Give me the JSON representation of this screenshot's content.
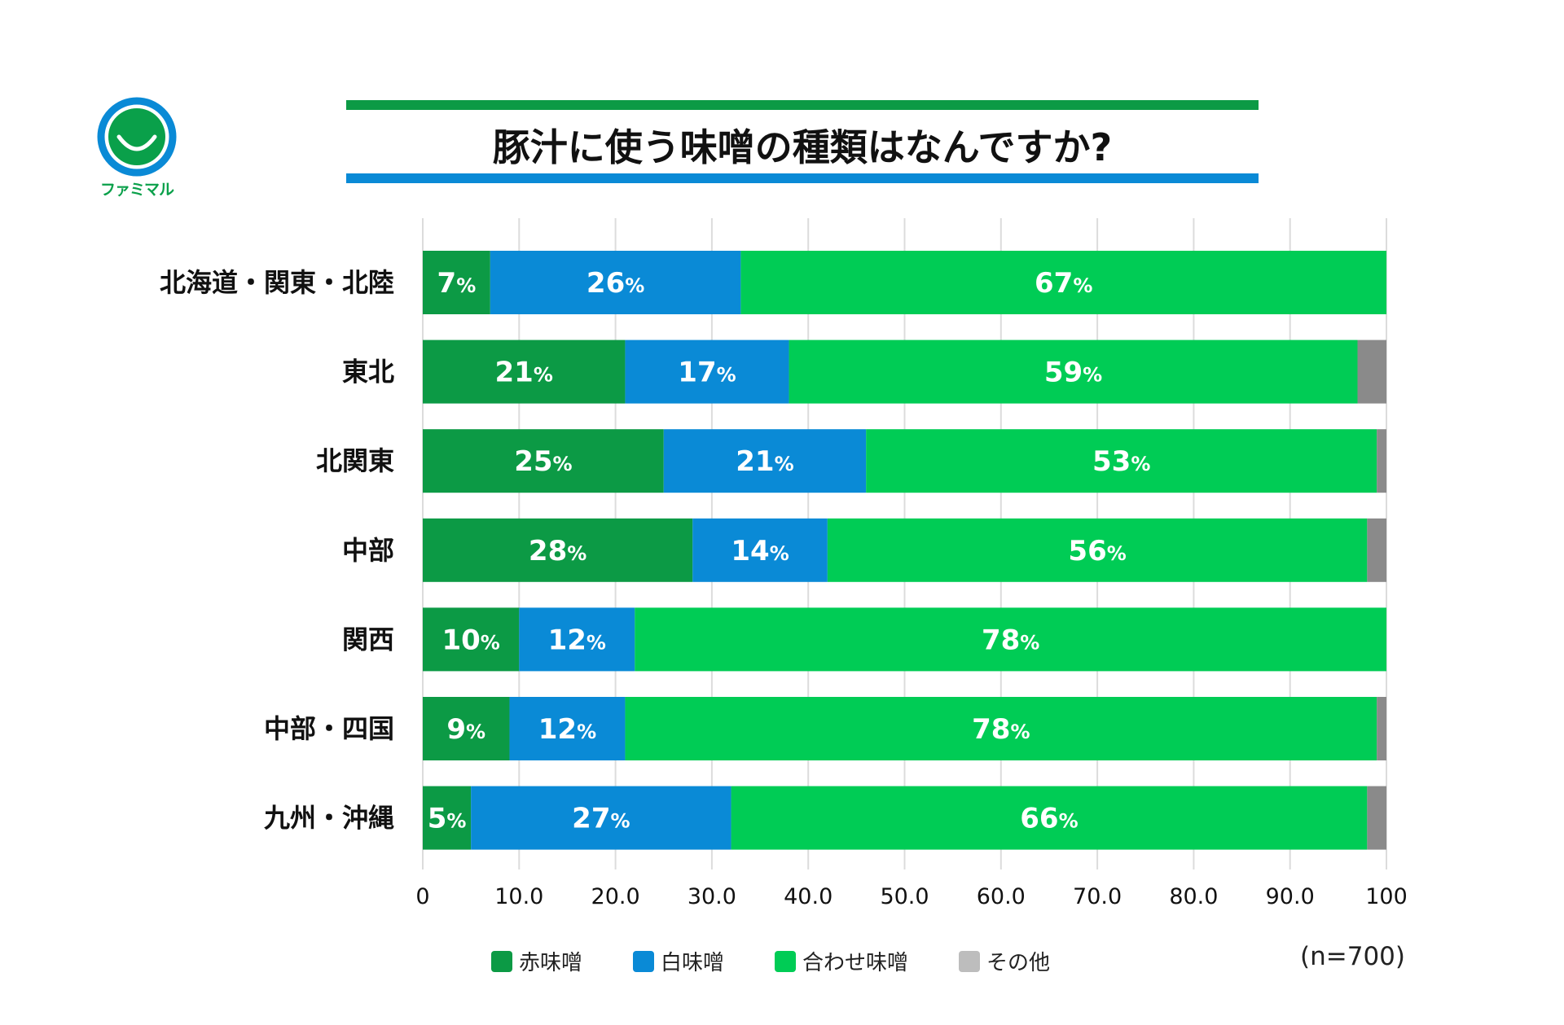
{
  "logo": {
    "text": "ファミマル",
    "colors": {
      "ring": "#0a8ad6",
      "face": "#0aa04a"
    }
  },
  "title": "豚汁に使う味噌の種類はなんですか?",
  "sample_note": "(n=700)",
  "chart_data": {
    "type": "bar",
    "orientation": "horizontal",
    "stacked": true,
    "title": "豚汁に使う味噌の種類はなんですか?",
    "categories": [
      "北海道・関東・北陸",
      "東北",
      "北関東",
      "中部",
      "関西",
      "中部・四国",
      "九州・沖縄"
    ],
    "series": [
      {
        "name": "赤味噌",
        "color": "#0c9a45",
        "values": [
          7,
          21,
          25,
          28,
          10,
          9,
          5
        ]
      },
      {
        "name": "白味噌",
        "color": "#0a8ad6",
        "values": [
          26,
          17,
          21,
          14,
          12,
          12,
          27
        ]
      },
      {
        "name": "合わせ味噌",
        "color": "#00cc55",
        "values": [
          67,
          59,
          53,
          56,
          78,
          78,
          66
        ]
      },
      {
        "name": "その他",
        "color": "#bdbdbd",
        "bar_color": "#8a8a8a",
        "values": [
          0,
          3,
          1,
          2,
          0,
          1,
          2
        ]
      }
    ],
    "value_suffix": "%",
    "xlim": [
      0,
      100
    ],
    "x_ticks": [
      "0",
      "10.0",
      "20.0",
      "30.0",
      "40.0",
      "50.0",
      "60.0",
      "70.0",
      "80.0",
      "90.0",
      "100"
    ],
    "grid": true,
    "legend_position": "bottom"
  }
}
